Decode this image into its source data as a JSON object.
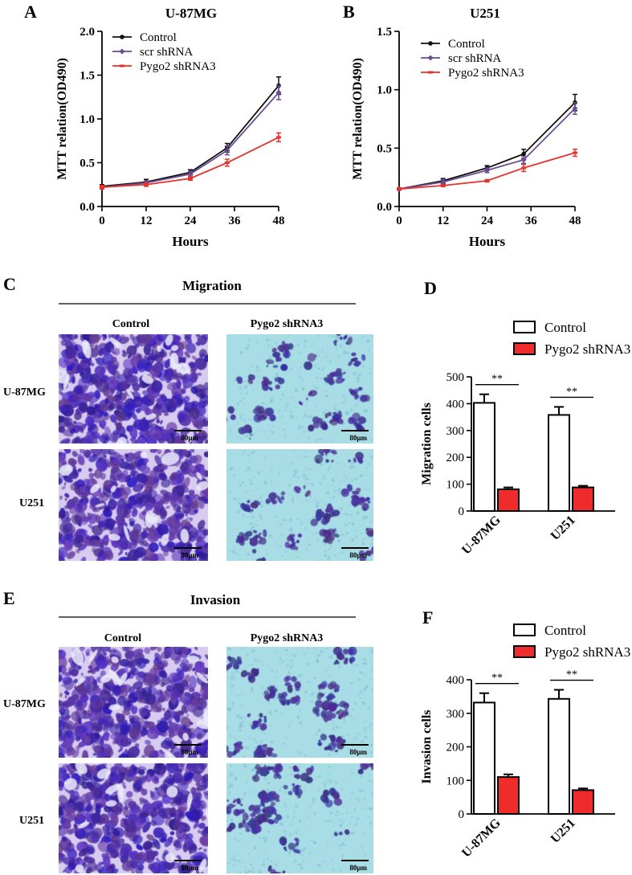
{
  "panel_letters": {
    "A": "A",
    "B": "B",
    "C": "C",
    "D": "D",
    "E": "E",
    "F": "F"
  },
  "colors": {
    "control": "#111111",
    "scr": "#6a4c93",
    "pygo": "#e8312a",
    "bar_control": "#ffffff",
    "bar_pygo": "#ef2b2b",
    "stain_dense": "#3f2a8c",
    "stain_bg_control": "#d7cbef",
    "stain_bg_pygo": "#a8dde6"
  },
  "micrographs": {
    "migration": {
      "title": "Migration",
      "col_headers": [
        "Control",
        "Pygo2 shRNA3"
      ],
      "row_labels": [
        "U-87MG",
        "U251"
      ],
      "scale_label": "80μm"
    },
    "invasion": {
      "title": "Invasion",
      "col_headers": [
        "Control",
        "Pygo2 shRNA3"
      ],
      "row_labels": [
        "U-87MG",
        "U251"
      ],
      "scale_label": "80μm"
    }
  },
  "chart_data": [
    {
      "id": "A",
      "type": "line",
      "title": "U-87MG",
      "xlabel": "Hours",
      "ylabel": "MTT relation(OD490)",
      "x": [
        0,
        12,
        24,
        34,
        48
      ],
      "xticks": [
        0,
        12,
        24,
        36,
        48
      ],
      "xtick_labels": [
        "0",
        "12",
        "24",
        "36",
        "48"
      ],
      "xlim": [
        0,
        48
      ],
      "ylim": [
        0,
        2.0
      ],
      "yticks": [
        0,
        0.5,
        1.0,
        1.5,
        2.0
      ],
      "ytick_labels": [
        "0.0",
        "0.5",
        "1.0",
        "1.5",
        "2.0"
      ],
      "legend_position": "top-left",
      "series": [
        {
          "name": "Control",
          "color": "#111111",
          "marker": "circle",
          "values": [
            0.23,
            0.28,
            0.39,
            0.67,
            1.38
          ],
          "errors": [
            0.02,
            0.03,
            0.03,
            0.05,
            0.1
          ]
        },
        {
          "name": "scr shRNA",
          "color": "#6a4c93",
          "marker": "diamond",
          "values": [
            0.22,
            0.27,
            0.37,
            0.64,
            1.3
          ],
          "errors": [
            0.02,
            0.02,
            0.03,
            0.05,
            0.08
          ]
        },
        {
          "name": "Pygo2 shRNA3",
          "color": "#e8312a",
          "marker": "bar",
          "values": [
            0.22,
            0.25,
            0.32,
            0.5,
            0.79
          ],
          "errors": [
            0.02,
            0.02,
            0.02,
            0.04,
            0.05
          ]
        }
      ]
    },
    {
      "id": "B",
      "type": "line",
      "title": "U251",
      "xlabel": "Hours",
      "ylabel": "MTT relation(OD490)",
      "x": [
        0,
        12,
        24,
        34,
        48
      ],
      "xticks": [
        0,
        12,
        24,
        36,
        48
      ],
      "xtick_labels": [
        "0",
        "12",
        "24",
        "36",
        "48"
      ],
      "xlim": [
        0,
        48
      ],
      "ylim": [
        0,
        1.5
      ],
      "yticks": [
        0,
        0.5,
        1.0,
        1.5
      ],
      "ytick_labels": [
        "0.0",
        "0.5",
        "1.0",
        "1.5"
      ],
      "legend_position": "top-left",
      "series": [
        {
          "name": "Control",
          "color": "#111111",
          "marker": "circle",
          "values": [
            0.15,
            0.22,
            0.33,
            0.45,
            0.89
          ],
          "errors": [
            0.01,
            0.02,
            0.02,
            0.04,
            0.07
          ]
        },
        {
          "name": "scr shRNA",
          "color": "#6a4c93",
          "marker": "diamond",
          "values": [
            0.15,
            0.21,
            0.31,
            0.4,
            0.84
          ],
          "errors": [
            0.01,
            0.02,
            0.02,
            0.03,
            0.05
          ]
        },
        {
          "name": "Pygo2 shRNA3",
          "color": "#e8312a",
          "marker": "bar",
          "values": [
            0.15,
            0.18,
            0.22,
            0.33,
            0.46
          ],
          "errors": [
            0.01,
            0.01,
            0.01,
            0.03,
            0.03
          ]
        }
      ]
    },
    {
      "id": "D",
      "type": "bar",
      "title": "",
      "ylabel": "Migration cells",
      "categories": [
        "U-87MG",
        "U251"
      ],
      "ylim": [
        0,
        500
      ],
      "yticks": [
        0,
        100,
        200,
        300,
        400,
        500
      ],
      "ytick_labels": [
        "0",
        "100",
        "200",
        "300",
        "400",
        "500"
      ],
      "legend_position": "top",
      "significance": [
        "**",
        "**"
      ],
      "series": [
        {
          "name": "Control",
          "color": "#ffffff",
          "values": [
            403,
            358
          ],
          "errors": [
            32,
            30
          ]
        },
        {
          "name": "Pygo2 shRNA3",
          "color": "#ef2b2b",
          "values": [
            81,
            88
          ],
          "errors": [
            7,
            6
          ]
        }
      ]
    },
    {
      "id": "F",
      "type": "bar",
      "title": "",
      "ylabel": "Invasion cells",
      "categories": [
        "U-87MG",
        "U251"
      ],
      "ylim": [
        0,
        400
      ],
      "yticks": [
        0,
        100,
        200,
        300,
        400
      ],
      "ytick_labels": [
        "0",
        "100",
        "200",
        "300",
        "400"
      ],
      "legend_position": "top",
      "significance": [
        "**",
        "**"
      ],
      "series": [
        {
          "name": "Control",
          "color": "#ffffff",
          "values": [
            332,
            343
          ],
          "errors": [
            28,
            27
          ]
        },
        {
          "name": "Pygo2 shRNA3",
          "color": "#ef2b2b",
          "values": [
            110,
            71
          ],
          "errors": [
            8,
            5
          ]
        }
      ]
    }
  ]
}
